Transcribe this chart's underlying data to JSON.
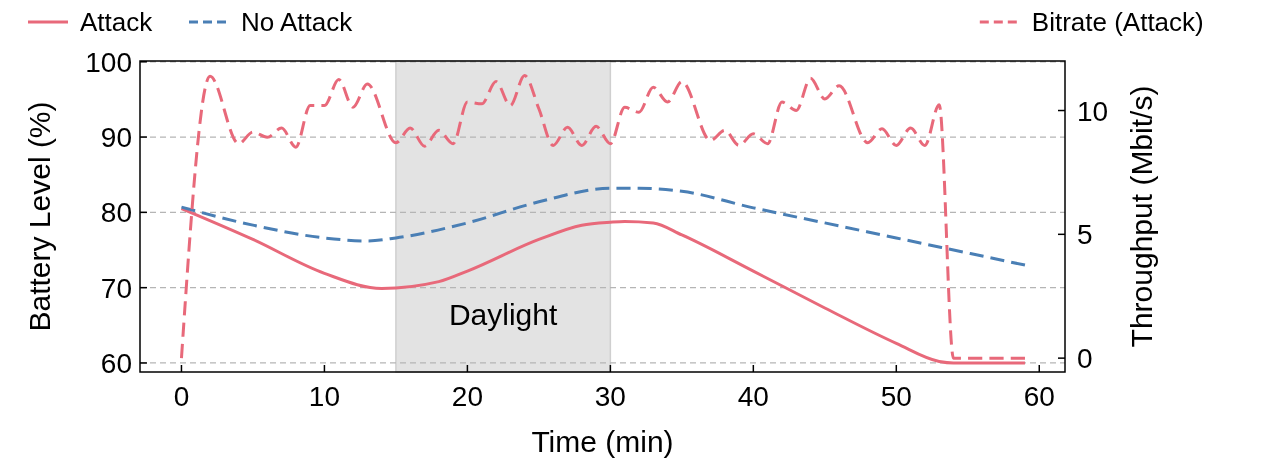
{
  "chart_data": {
    "type": "line",
    "xlabel": "Time (min)",
    "ylabel": "Battery Level (%)",
    "y2label": "Throughput (Mbit/s)",
    "xlim": [
      -2.9,
      61.8
    ],
    "xticks": [
      0,
      10,
      20,
      30,
      40,
      50,
      60
    ],
    "ylim": [
      58.8,
      100.1
    ],
    "yticks": [
      60,
      70,
      80,
      90,
      100
    ],
    "y2lim": [
      -0.56,
      12
    ],
    "y2ticks": [
      0,
      5,
      10
    ],
    "grid": "y",
    "legend": "top",
    "bands": [
      {
        "axis": "x",
        "from": 15,
        "to": 30,
        "label": "Daylight",
        "color": "#e3e3e3"
      }
    ],
    "series": [
      {
        "name": "Attack",
        "color": "#e8697a",
        "line_style": "solid",
        "x": [
          0,
          5,
          10,
          14,
          18,
          20,
          25,
          28,
          30,
          31,
          33,
          35,
          40,
          45,
          50,
          53,
          54,
          59
        ],
        "values": [
          80.5,
          76.4,
          71.9,
          69.9,
          70.8,
          72.2,
          76.4,
          78.3,
          78.7,
          78.8,
          78.6,
          77.0,
          72.2,
          67.3,
          62.6,
          60.2,
          60,
          60
        ]
      },
      {
        "name": "No Attack",
        "color": "#4a7fb5",
        "line_style": "dashed",
        "x": [
          0,
          5,
          10,
          13,
          15,
          20,
          25,
          30,
          32,
          35,
          40,
          45,
          50,
          55,
          59
        ],
        "values": [
          80.7,
          78.3,
          76.6,
          76.2,
          76.6,
          78.6,
          81.4,
          83.2,
          83.2,
          82.8,
          80.6,
          78.6,
          76.6,
          74.6,
          73.0
        ]
      },
      {
        "name": "Bitrate (Attack)",
        "color": "#e8697a",
        "line_style": "dashed",
        "axis": "y2",
        "x": [
          0,
          2,
          4,
          5,
          6,
          7,
          8,
          9,
          10,
          11,
          12,
          13,
          15,
          16,
          17,
          18,
          19,
          20,
          21,
          22,
          23,
          24,
          25,
          26,
          27,
          28,
          29,
          30,
          31,
          32,
          33,
          34,
          35,
          37,
          38,
          39,
          40,
          41,
          42,
          43,
          44,
          45,
          46,
          48,
          49,
          50,
          51,
          52,
          53,
          54,
          59
        ],
        "values": [
          0,
          11.38,
          8.66,
          9.13,
          8.92,
          9.29,
          8.52,
          10.2,
          10.2,
          11.25,
          10.13,
          11.07,
          8.7,
          9.29,
          8.56,
          9.2,
          8.66,
          10.34,
          10.27,
          11.17,
          10.2,
          11.41,
          10.07,
          8.59,
          9.32,
          8.59,
          9.36,
          8.66,
          10.13,
          9.93,
          10.94,
          10.34,
          11.17,
          8.79,
          9.2,
          8.59,
          9.06,
          8.66,
          10.34,
          10.0,
          11.3,
          10.47,
          11.0,
          8.7,
          9.26,
          8.59,
          9.29,
          8.59,
          10.23,
          0,
          0
        ]
      }
    ]
  }
}
